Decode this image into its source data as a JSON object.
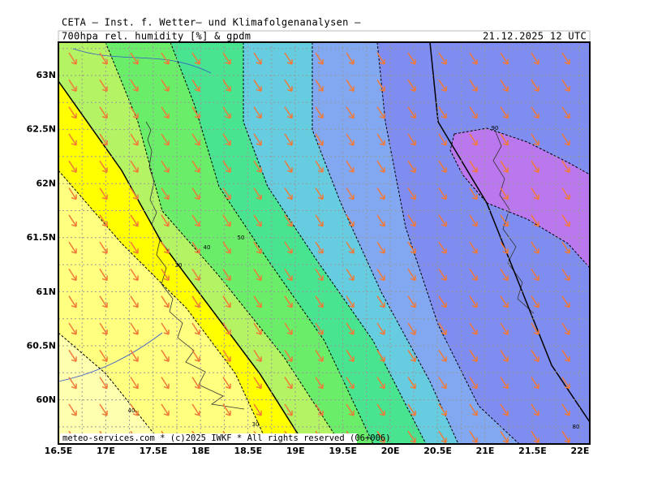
{
  "header": {
    "title": "CETA — Inst. f. Wetter— und Klimafolgenanalysen —",
    "product": "700hpa rel. humidity [%] & gpdm",
    "valid_time": "21.12.2025 12 UTC"
  },
  "map": {
    "lat_labels": [
      "63N",
      "62.5N",
      "62N",
      "61.5N",
      "61N",
      "60.5N",
      "60N"
    ],
    "lon_labels": [
      "16.5E",
      "17E",
      "17.5E",
      "18E",
      "18.5E",
      "19E",
      "19.5E",
      "20E",
      "20.5E",
      "21E",
      "21.5E",
      "22E"
    ],
    "contour_labels": [
      "90",
      "80",
      "30",
      "40",
      "50",
      "40",
      "30"
    ],
    "footer": "meteo-services.com * (c)2025 IWKF * All rights reserved (06+006)"
  }
}
